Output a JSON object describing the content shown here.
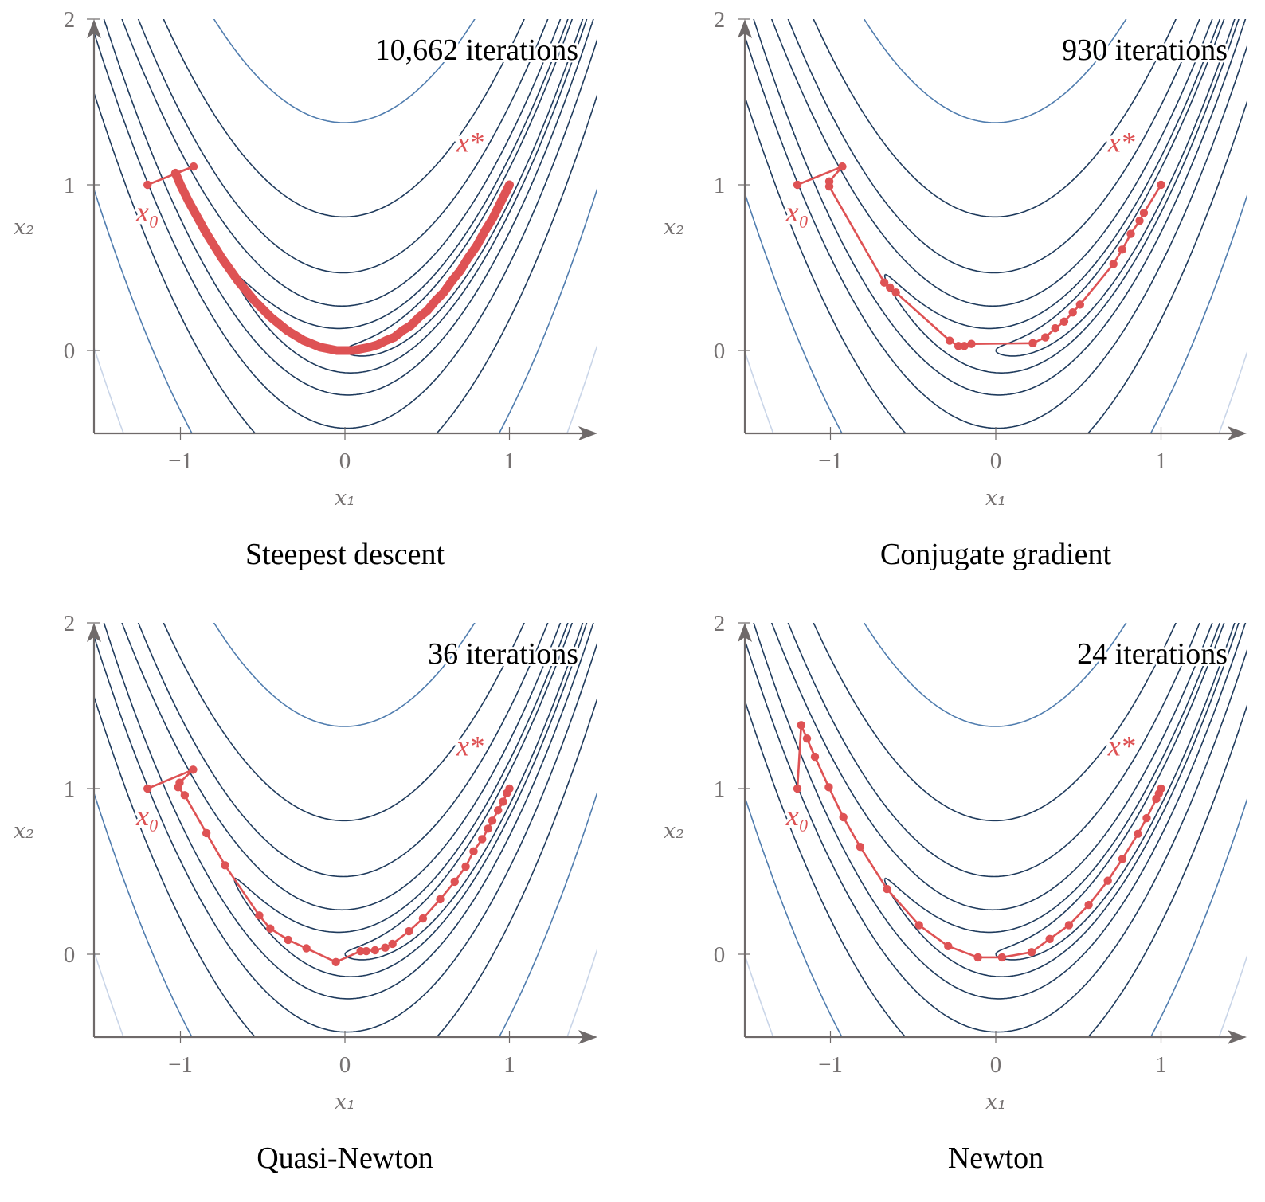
{
  "chart_data": [
    {
      "type": "contour",
      "title": "Steepest descent",
      "annotation": "10,662 iterations",
      "xlabel": "x₁",
      "ylabel": "x₂",
      "x_ticks": [
        {
          "value": -1,
          "label": "−1"
        },
        {
          "value": 0,
          "label": "0"
        },
        {
          "value": 1,
          "label": "1"
        }
      ],
      "y_ticks": [
        {
          "value": 0,
          "label": "0"
        },
        {
          "value": 1,
          "label": "1"
        },
        {
          "value": 2,
          "label": "2"
        }
      ],
      "xlim": [
        -1.53,
        1.53
      ],
      "ylim": [
        -0.5,
        2
      ],
      "start_label": "x₀",
      "optimum_label": "x*",
      "dense_path": true,
      "path": [
        [
          -1.2,
          1.0
        ],
        [
          -0.92,
          1.11
        ],
        [
          -1.03,
          1.07
        ],
        [
          -1.0,
          1.0
        ],
        [
          -0.95,
          0.9
        ],
        [
          -0.9,
          0.81
        ],
        [
          -0.85,
          0.72
        ],
        [
          -0.8,
          0.64
        ],
        [
          -0.75,
          0.56
        ],
        [
          -0.7,
          0.49
        ],
        [
          -0.65,
          0.42
        ],
        [
          -0.6,
          0.36
        ],
        [
          -0.55,
          0.3
        ],
        [
          -0.5,
          0.25
        ],
        [
          -0.45,
          0.2
        ],
        [
          -0.4,
          0.16
        ],
        [
          -0.35,
          0.12
        ],
        [
          -0.3,
          0.09
        ],
        [
          -0.25,
          0.06
        ],
        [
          -0.2,
          0.04
        ],
        [
          -0.15,
          0.02
        ],
        [
          -0.1,
          0.01
        ],
        [
          -0.05,
          0.0
        ],
        [
          0.0,
          0.0
        ],
        [
          0.05,
          0.0
        ],
        [
          0.1,
          0.01
        ],
        [
          0.15,
          0.02
        ],
        [
          0.2,
          0.035
        ],
        [
          0.25,
          0.06
        ],
        [
          0.3,
          0.08
        ],
        [
          0.35,
          0.12
        ],
        [
          0.4,
          0.15
        ],
        [
          0.45,
          0.2
        ],
        [
          0.5,
          0.24
        ],
        [
          0.55,
          0.3
        ],
        [
          0.6,
          0.35
        ],
        [
          0.65,
          0.42
        ],
        [
          0.7,
          0.48
        ],
        [
          0.75,
          0.56
        ],
        [
          0.8,
          0.63
        ],
        [
          0.85,
          0.72
        ],
        [
          0.9,
          0.8
        ],
        [
          0.95,
          0.9
        ],
        [
          1.0,
          1.0
        ]
      ]
    },
    {
      "type": "contour",
      "title": "Conjugate gradient",
      "annotation": "930 iterations",
      "xlabel": "x₁",
      "ylabel": "x₂",
      "x_ticks": [
        {
          "value": -1,
          "label": "−1"
        },
        {
          "value": 0,
          "label": "0"
        },
        {
          "value": 1,
          "label": "1"
        }
      ],
      "y_ticks": [
        {
          "value": 0,
          "label": "0"
        },
        {
          "value": 1,
          "label": "1"
        },
        {
          "value": 2,
          "label": "2"
        }
      ],
      "xlim": [
        -1.53,
        1.53
      ],
      "ylim": [
        -0.5,
        2
      ],
      "start_label": "x₀",
      "optimum_label": "x*",
      "dense_path": false,
      "path": [
        [
          -1.2,
          1.0
        ],
        [
          -0.928,
          1.11
        ],
        [
          -1.007,
          1.02
        ],
        [
          -1.007,
          0.99
        ],
        [
          -0.674,
          0.41
        ],
        [
          -0.64,
          0.38
        ],
        [
          -0.604,
          0.35
        ],
        [
          -0.279,
          0.06
        ],
        [
          -0.226,
          0.027
        ],
        [
          -0.19,
          0.027
        ],
        [
          -0.147,
          0.04
        ],
        [
          0.224,
          0.044
        ],
        [
          0.3,
          0.079
        ],
        [
          0.36,
          0.134
        ],
        [
          0.414,
          0.174
        ],
        [
          0.466,
          0.23
        ],
        [
          0.51,
          0.277
        ],
        [
          0.712,
          0.522
        ],
        [
          0.765,
          0.609
        ],
        [
          0.817,
          0.704
        ],
        [
          0.87,
          0.783
        ],
        [
          0.896,
          0.83
        ],
        [
          1.0,
          1.0
        ]
      ]
    },
    {
      "type": "contour",
      "title": "Quasi-Newton",
      "annotation": "36 iterations",
      "xlabel": "x₁",
      "ylabel": "x₂",
      "x_ticks": [
        {
          "value": -1,
          "label": "−1"
        },
        {
          "value": 0,
          "label": "0"
        },
        {
          "value": 1,
          "label": "1"
        }
      ],
      "y_ticks": [
        {
          "value": 0,
          "label": "0"
        },
        {
          "value": 1,
          "label": "1"
        },
        {
          "value": 2,
          "label": "2"
        }
      ],
      "xlim": [
        -1.53,
        1.53
      ],
      "ylim": [
        -0.5,
        2
      ],
      "start_label": "x₀",
      "optimum_label": "x*",
      "dense_path": false,
      "path": [
        [
          -1.2,
          1.0
        ],
        [
          -0.923,
          1.114
        ],
        [
          -1.005,
          1.035
        ],
        [
          -1.014,
          1.008
        ],
        [
          -0.974,
          0.96
        ],
        [
          -0.842,
          0.731
        ],
        [
          -0.729,
          0.537
        ],
        [
          -0.521,
          0.234
        ],
        [
          -0.454,
          0.155
        ],
        [
          -0.345,
          0.087
        ],
        [
          -0.234,
          0.036
        ],
        [
          -0.055,
          -0.047
        ],
        [
          0.095,
          0.019
        ],
        [
          0.13,
          0.019
        ],
        [
          0.183,
          0.024
        ],
        [
          0.245,
          0.04
        ],
        [
          0.289,
          0.063
        ],
        [
          0.389,
          0.139
        ],
        [
          0.474,
          0.216
        ],
        [
          0.579,
          0.332
        ],
        [
          0.667,
          0.438
        ],
        [
          0.734,
          0.529
        ],
        [
          0.782,
          0.621
        ],
        [
          0.834,
          0.695
        ],
        [
          0.87,
          0.758
        ],
        [
          0.896,
          0.806
        ],
        [
          0.931,
          0.869
        ],
        [
          0.961,
          0.921
        ],
        [
          0.984,
          0.972
        ],
        [
          1.0,
          1.0
        ]
      ]
    },
    {
      "type": "contour",
      "title": "Newton",
      "annotation": "24 iterations",
      "xlabel": "x₁",
      "ylabel": "x₂",
      "x_ticks": [
        {
          "value": -1,
          "label": "−1"
        },
        {
          "value": 0,
          "label": "0"
        },
        {
          "value": 1,
          "label": "1"
        }
      ],
      "y_ticks": [
        {
          "value": 0,
          "label": "0"
        },
        {
          "value": 1,
          "label": "1"
        },
        {
          "value": 2,
          "label": "2"
        }
      ],
      "xlim": [
        -1.53,
        1.53
      ],
      "ylim": [
        -0.5,
        2
      ],
      "start_label": "x₀",
      "optimum_label": "x*",
      "dense_path": false,
      "path": [
        [
          -1.2,
          1.0
        ],
        [
          -1.177,
          1.383
        ],
        [
          -1.142,
          1.302
        ],
        [
          -1.094,
          1.192
        ],
        [
          -1.01,
          1.008
        ],
        [
          -0.922,
          0.827
        ],
        [
          -0.82,
          0.648
        ],
        [
          -0.658,
          0.394
        ],
        [
          -0.464,
          0.176
        ],
        [
          -0.288,
          0.049
        ],
        [
          -0.108,
          -0.019
        ],
        [
          0.038,
          -0.019
        ],
        [
          0.217,
          0.013
        ],
        [
          0.326,
          0.092
        ],
        [
          0.443,
          0.176
        ],
        [
          0.562,
          0.298
        ],
        [
          0.678,
          0.444
        ],
        [
          0.766,
          0.575
        ],
        [
          0.86,
          0.727
        ],
        [
          0.913,
          0.822
        ],
        [
          0.971,
          0.938
        ],
        [
          0.987,
          0.97
        ],
        [
          1.0,
          1.0
        ]
      ]
    }
  ],
  "contours": {
    "function": "(1 - x1)^2 + 100 (x2 - x1^2)^2",
    "levels": [
      1.0,
      2.8,
      8.2,
      23,
      66,
      190,
      540
    ],
    "level_colors": [
      "#1e3a5c",
      "#1e3a5c",
      "#1e3a5c",
      "#1e3a5c",
      "#1e3a5c",
      "#4f7cae",
      "#c9d5e8"
    ]
  },
  "colors": {
    "path": "#de5254",
    "axis": "#6f6a6a",
    "tick_text": "#757171"
  }
}
